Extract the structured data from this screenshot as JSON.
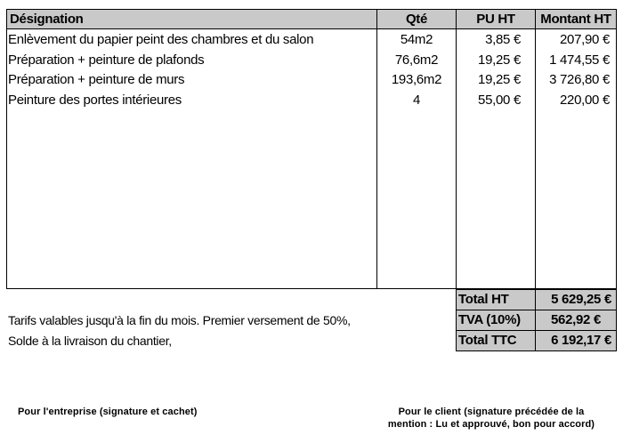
{
  "table": {
    "headers": {
      "designation": "Désignation",
      "qty": "Qté",
      "unit_price": "PU HT",
      "amount": "Montant HT"
    },
    "rows": [
      {
        "designation": "Enlèvement du papier peint des chambres et du salon",
        "qty": "54m2",
        "unit_price": "3,85 €",
        "amount": "207,90 €"
      },
      {
        "designation": "Préparation + peinture de plafonds",
        "qty": "76,6m2",
        "unit_price": "19,25 €",
        "amount": "1 474,55 €"
      },
      {
        "designation": "Préparation + peinture de murs",
        "qty": "193,6m2",
        "unit_price": "19,25 €",
        "amount": "3 726,80 €"
      },
      {
        "designation": "Peinture des portes intérieures",
        "qty": "4",
        "unit_price": "55,00 €",
        "amount": "220,00 €"
      }
    ]
  },
  "totals": [
    {
      "label": "Total HT",
      "value": "5 629,25 €"
    },
    {
      "label": "TVA (10%)",
      "value": "562,92 €"
    },
    {
      "label": "Total TTC",
      "value": "6 192,17 €"
    }
  ],
  "notes": [
    "Tarifs valables jusqu'à la fin du mois. Premier versement de 50%,",
    "Solde à la livraison du chantier,"
  ],
  "signatures": {
    "company": "Pour l'entreprise (signature et cachet)",
    "client_line1": "Pour le client (signature précédée de la",
    "client_line2": "mention : Lu et approuvé, bon pour accord)"
  }
}
